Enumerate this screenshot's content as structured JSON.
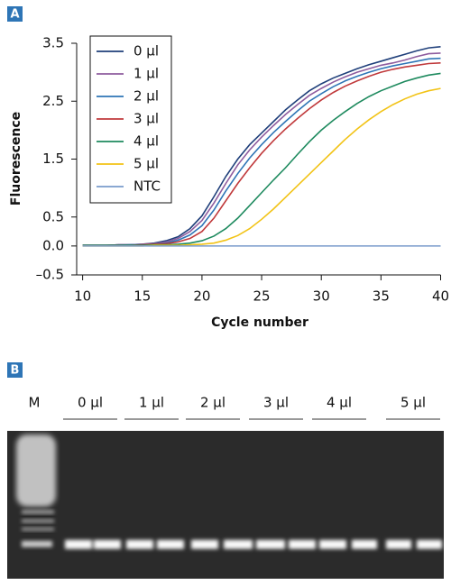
{
  "panel_labels": [
    "A",
    "B"
  ],
  "chart_data": {
    "type": "line",
    "x_label": "Cycle number",
    "y_label": "Fluorescence",
    "x": [
      10,
      11,
      12,
      13,
      14,
      15,
      16,
      17,
      18,
      19,
      20,
      21,
      22,
      23,
      24,
      25,
      26,
      27,
      28,
      29,
      30,
      31,
      32,
      33,
      34,
      35,
      36,
      37,
      38,
      39,
      40
    ],
    "series": [
      {
        "name": "0 µl",
        "color": "#1f3f7a",
        "values": [
          0.01,
          0.01,
          0.01,
          0.02,
          0.02,
          0.03,
          0.05,
          0.09,
          0.16,
          0.3,
          0.52,
          0.85,
          1.2,
          1.5,
          1.75,
          1.95,
          2.15,
          2.35,
          2.52,
          2.68,
          2.8,
          2.9,
          2.98,
          3.06,
          3.13,
          3.19,
          3.25,
          3.31,
          3.37,
          3.42,
          3.44
        ]
      },
      {
        "name": "1 µl",
        "color": "#8e5c9e",
        "values": [
          0.01,
          0.01,
          0.01,
          0.02,
          0.02,
          0.03,
          0.04,
          0.07,
          0.13,
          0.25,
          0.44,
          0.74,
          1.08,
          1.4,
          1.66,
          1.88,
          2.08,
          2.27,
          2.44,
          2.6,
          2.72,
          2.83,
          2.92,
          3.0,
          3.06,
          3.12,
          3.16,
          3.21,
          3.27,
          3.32,
          3.33
        ]
      },
      {
        "name": "2 µl",
        "color": "#2e75b6",
        "values": [
          0.01,
          0.01,
          0.01,
          0.01,
          0.02,
          0.02,
          0.03,
          0.05,
          0.1,
          0.19,
          0.35,
          0.62,
          0.95,
          1.25,
          1.52,
          1.75,
          1.96,
          2.15,
          2.33,
          2.5,
          2.63,
          2.75,
          2.85,
          2.93,
          3.0,
          3.06,
          3.11,
          3.15,
          3.19,
          3.23,
          3.24
        ]
      },
      {
        "name": "3 µl",
        "color": "#c0393b",
        "values": [
          0.01,
          0.01,
          0.01,
          0.01,
          0.01,
          0.02,
          0.03,
          0.04,
          0.07,
          0.13,
          0.25,
          0.48,
          0.78,
          1.08,
          1.35,
          1.6,
          1.82,
          2.02,
          2.2,
          2.37,
          2.52,
          2.65,
          2.76,
          2.85,
          2.93,
          3.0,
          3.05,
          3.09,
          3.12,
          3.15,
          3.16
        ]
      },
      {
        "name": "4 µl",
        "color": "#1e8a5e",
        "values": [
          0.01,
          0.01,
          0.01,
          0.01,
          0.01,
          0.01,
          0.02,
          0.02,
          0.03,
          0.05,
          0.09,
          0.17,
          0.3,
          0.48,
          0.7,
          0.92,
          1.14,
          1.35,
          1.58,
          1.8,
          2.0,
          2.17,
          2.32,
          2.46,
          2.58,
          2.68,
          2.76,
          2.84,
          2.9,
          2.95,
          2.98
        ]
      },
      {
        "name": "5 µl",
        "color": "#f2c316",
        "values": [
          0,
          0,
          0,
          0,
          0,
          0,
          0.01,
          0.01,
          0.01,
          0.02,
          0.03,
          0.05,
          0.1,
          0.18,
          0.3,
          0.46,
          0.64,
          0.84,
          1.04,
          1.24,
          1.44,
          1.64,
          1.84,
          2.02,
          2.18,
          2.32,
          2.44,
          2.54,
          2.62,
          2.68,
          2.72
        ]
      },
      {
        "name": "NTC",
        "color": "#7a9ccc",
        "values": [
          0,
          0,
          0,
          0,
          0,
          0,
          0,
          0,
          0,
          0,
          0,
          0,
          0,
          0,
          0,
          0,
          0,
          0,
          0,
          0,
          0,
          0,
          0,
          0,
          0,
          0,
          0,
          0,
          0,
          0,
          0
        ]
      }
    ],
    "xlim": [
      9.5,
      40
    ],
    "xticks": [
      10,
      15,
      20,
      25,
      30,
      35,
      40
    ],
    "ylim": [
      -0.5,
      3.5
    ],
    "yticks": [
      {
        "value": -0.5,
        "label": "–0.5"
      },
      {
        "value": 0,
        "label": "0.0"
      },
      0.5,
      1.5,
      2.5,
      3.5
    ],
    "legend": "upper left"
  },
  "gel": {
    "lanes": [
      "M",
      "0 µl",
      "1 µl",
      "2 µl",
      "3 µl",
      "4 µl",
      "5 µl"
    ]
  }
}
